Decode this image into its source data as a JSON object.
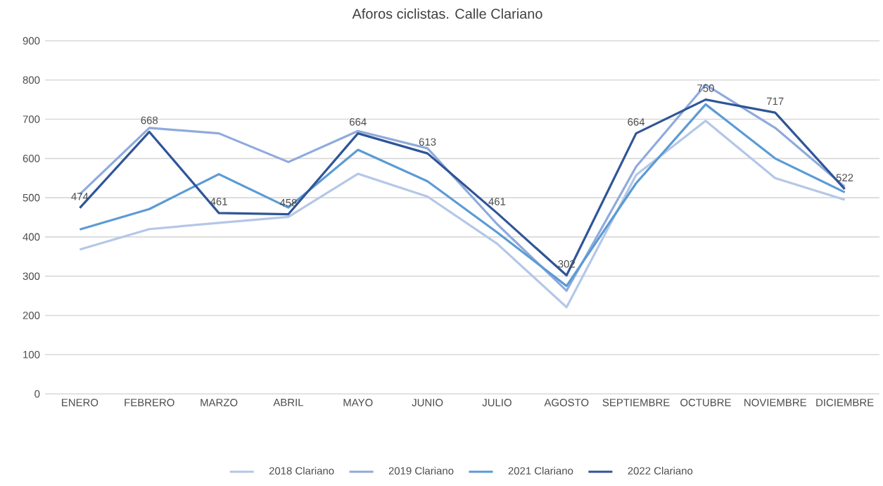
{
  "chart_data": {
    "type": "line",
    "title": "Aforos ciclistas. Calle Clariano",
    "categories": [
      "ENERO",
      "FEBRERO",
      "MARZO",
      "ABRIL",
      "MAYO",
      "JUNIO",
      "JULIO",
      "AGOSTO",
      "SEPTIEMBRE",
      "OCTUBRE",
      "NOVIEMBRE",
      "DICIEMBRE"
    ],
    "series": [
      {
        "name": "2018 Clariano",
        "color": "#b4c7e7",
        "values": [
          368,
          420,
          436,
          451,
          561,
          503,
          383,
          221,
          558,
          696,
          550,
          495
        ]
      },
      {
        "name": "2019 Clariano",
        "color": "#8faadc",
        "values": [
          509,
          678,
          664,
          591,
          670,
          626,
          433,
          263,
          579,
          788,
          678,
          528
        ]
      },
      {
        "name": "2021 Clariano",
        "color": "#5b9bd5",
        "values": [
          419,
          471,
          560,
          475,
          622,
          542,
          412,
          275,
          537,
          738,
          600,
          514
        ]
      },
      {
        "name": "2022 Clariano",
        "color": "#2f5597",
        "values": [
          474,
          668,
          461,
          458,
          664,
          613,
          461,
          302,
          664,
          750,
          717,
          522
        ],
        "value_labels": [
          "474",
          "668",
          "461",
          "458",
          "664",
          "613",
          "461",
          "302",
          "664",
          "750",
          "717",
          "522"
        ]
      }
    ],
    "ylim": [
      0,
      900
    ],
    "yticks": [
      0,
      100,
      200,
      300,
      400,
      500,
      600,
      700,
      800,
      900
    ],
    "grid": "y",
    "legend": "bottom",
    "marker": "none",
    "line_style": "solid"
  }
}
